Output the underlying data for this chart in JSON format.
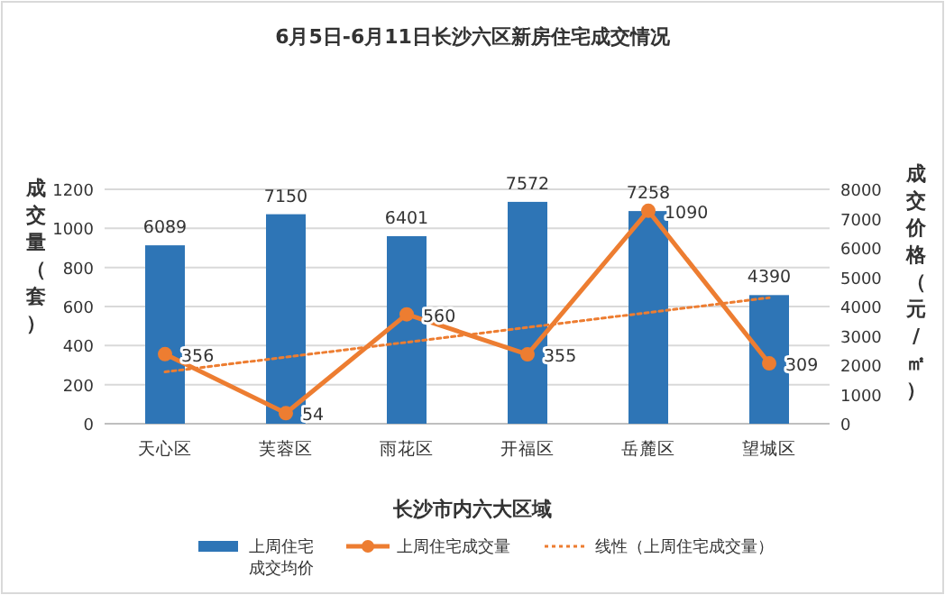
{
  "chart_data": {
    "type": "bar",
    "title": "6月5日-6月11日长沙六区新房住宅成交情况",
    "xlabel": "长沙市内六大区域",
    "ylabel": "成交量（套）",
    "y2label": "成交价格（元/㎡）",
    "categories": [
      "天心区",
      "芙蓉区",
      "雨花区",
      "开福区",
      "岳麓区",
      "望城区"
    ],
    "series": [
      {
        "name": "上周住宅成交均价",
        "axis": "y2",
        "color": "#2e75b6",
        "values": [
          6089,
          7150,
          6401,
          7572,
          7258,
          4390
        ],
        "value_labels": [
          "6089",
          "7150",
          "6401",
          "7572",
          "7258",
          "4390"
        ]
      },
      {
        "name": "上周住宅成交量",
        "type": "line",
        "color": "#ed7d31",
        "marker": "circle",
        "values": [
          356,
          54,
          560,
          355,
          1090,
          309
        ],
        "value_labels": [
          "356",
          "54",
          "560",
          "355",
          "1090",
          "309"
        ]
      },
      {
        "name": "线性（上周住宅成交量）",
        "type": "line",
        "color": "#ed7d31",
        "line_style": "dotted",
        "x": [
          "天心区",
          "望城区"
        ],
        "values": [
          265,
          645
        ]
      }
    ],
    "ylim": [
      0,
      1200
    ],
    "yticks": [
      0,
      200,
      400,
      600,
      800,
      1000,
      1200
    ],
    "y2lim": [
      0,
      8000
    ],
    "y2ticks": [
      0,
      1000,
      2000,
      3000,
      4000,
      5000,
      6000,
      7000,
      8000
    ],
    "grid": "y",
    "legend": "bottom"
  }
}
